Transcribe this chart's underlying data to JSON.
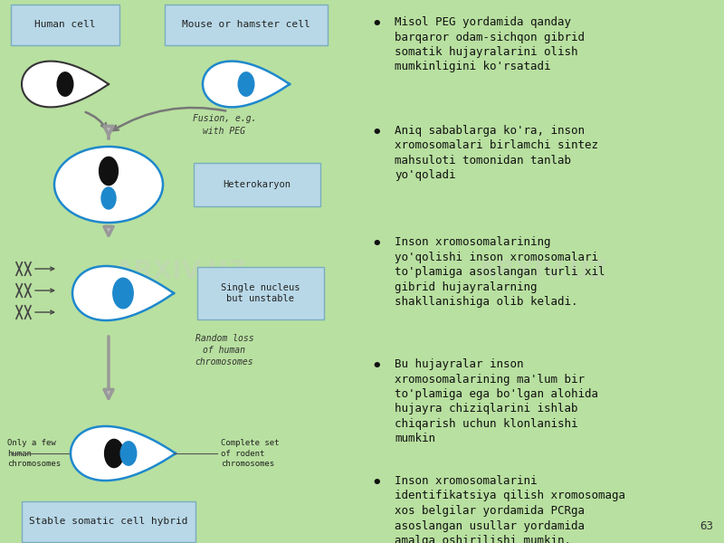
{
  "bg_color": "#b8e0a0",
  "left_bg": "#d8eec8",
  "right_bg": "#b0d898",
  "label_box_color": "#b8d8e8",
  "label_box_edge": "#7aadbe",
  "human_cell_label": "Human cell",
  "mouse_cell_label": "Mouse or hamster cell",
  "heterokaryon_label": "Heterokaryon",
  "single_nucleus_label": "Single nucleus\nbut unstable",
  "stable_hybrid_label": "Stable somatic cell hybrid",
  "fusion_label": "Fusion, e.g.\nwith PEG",
  "random_loss_label": "Random loss\nof human\nchromosomes",
  "only_few_label": "Only a few\nhuman\nchromosomes",
  "complete_set_label": "Complete set\nof rodent\nchromosomes",
  "page_number": "63",
  "bullet_points": [
    "Misol PEG yordamida qanday\nbarqaror odam-sichqon gibrid\nsomatik hujayralarini olish\nmumkinligini ko'rsatadi",
    "Aniq sabablarga ko'ra, inson\nxromosomalari birlamchi sintez\nmahsuloti tomonidan tanlab\nyo'qoladi",
    "Inson xromosomalarining\nyo'qolishi inson xromosomalari\nto'plamiga asoslangan turli xil\ngibrid hujayralarning\nshakllanishiga olib keladi.",
    "Bu hujayralar inson\nxromosomalarining ma'lum bir\nto'plamiga ega bo'lgan alohida\nhujayra chiziqlarini ishlab\nchiqarish uchun klonlanishi\nmumkin",
    "Inson xromosomalarini\nidentifikatsiya qilish xromosomaga\nxos belgilar yordamida PCRga\nasoslangan usullar yordamida\namalga oshirilishi mumkin."
  ],
  "human_cell_color": "#333333",
  "mouse_cell_color": "#1e88cc",
  "nucleus_human_color": "#111111",
  "nucleus_mouse_color": "#1e88cc",
  "arrow_color": "#888888"
}
